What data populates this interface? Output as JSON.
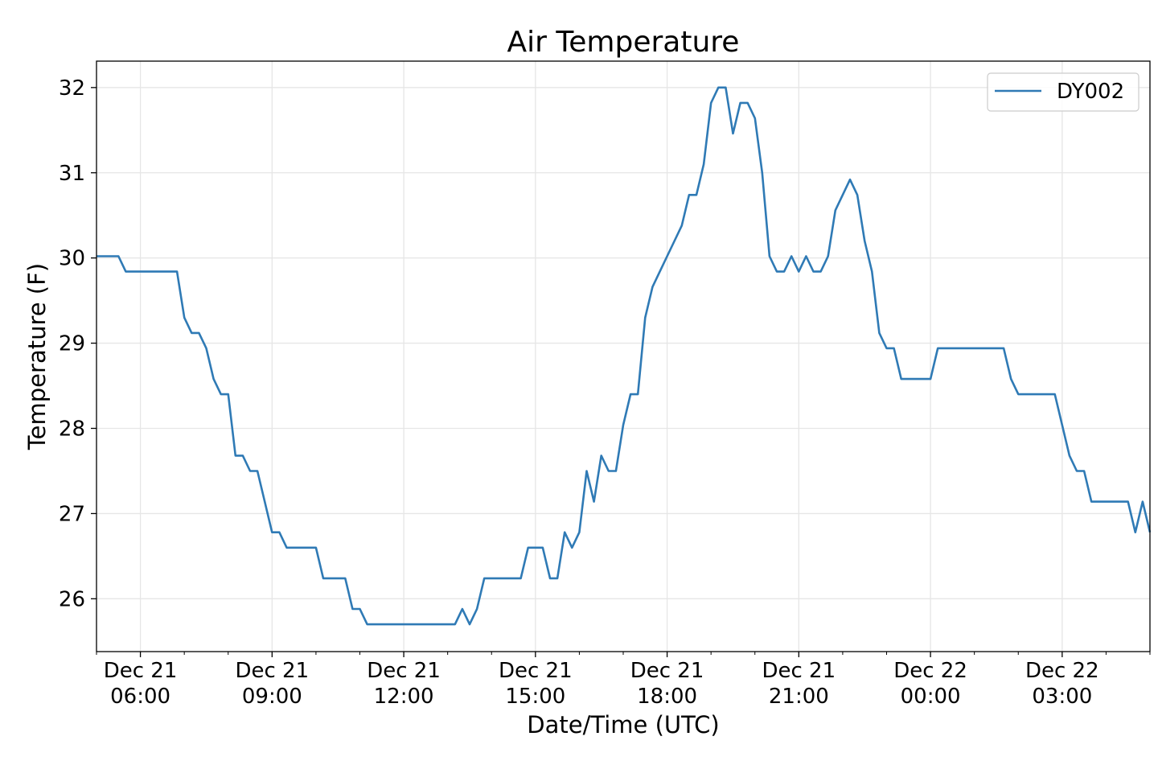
{
  "chart_data": {
    "type": "line",
    "title": "Air Temperature",
    "xlabel": "Date/Time (UTC)",
    "ylabel": "Temperature (F)",
    "x_units": "hours since Dec 21 00:00 UTC",
    "xlim": [
      5.0,
      29.0
    ],
    "ylim": [
      25.38,
      32.31
    ],
    "grid": true,
    "legend_position": "top-right",
    "yticks": [
      26,
      27,
      28,
      29,
      30,
      31,
      32
    ],
    "xticks": [
      {
        "value": 6,
        "line1": "Dec 21",
        "line2": "06:00"
      },
      {
        "value": 9,
        "line1": "Dec 21",
        "line2": "09:00"
      },
      {
        "value": 12,
        "line1": "Dec 21",
        "line2": "12:00"
      },
      {
        "value": 15,
        "line1": "Dec 21",
        "line2": "15:00"
      },
      {
        "value": 18,
        "line1": "Dec 21",
        "line2": "18:00"
      },
      {
        "value": 21,
        "line1": "Dec 21",
        "line2": "21:00"
      },
      {
        "value": 24,
        "line1": "Dec 22",
        "line2": "00:00"
      },
      {
        "value": 27,
        "line1": "Dec 22",
        "line2": "03:00"
      }
    ],
    "minor_xtick_step_hours": 1,
    "series": [
      {
        "name": "DY002",
        "color": "#2f7ab5",
        "x_start": 5.0,
        "x_step": 0.1666667,
        "values": [
          30.02,
          30.02,
          30.02,
          30.02,
          29.84,
          29.84,
          29.84,
          29.84,
          29.84,
          29.84,
          29.84,
          29.84,
          29.3,
          29.12,
          29.12,
          28.94,
          28.58,
          28.4,
          28.4,
          27.68,
          27.68,
          27.5,
          27.5,
          27.14,
          26.78,
          26.78,
          26.6,
          26.6,
          26.6,
          26.6,
          26.6,
          26.24,
          26.24,
          26.24,
          26.24,
          25.88,
          25.88,
          25.7,
          25.7,
          25.7,
          25.7,
          25.7,
          25.7,
          25.7,
          25.7,
          25.7,
          25.7,
          25.7,
          25.7,
          25.7,
          25.88,
          25.7,
          25.88,
          26.24,
          26.24,
          26.24,
          26.24,
          26.24,
          26.24,
          26.6,
          26.6,
          26.6,
          26.24,
          26.24,
          26.78,
          26.6,
          26.78,
          27.5,
          27.14,
          27.68,
          27.5,
          27.5,
          28.04,
          28.4,
          28.4,
          29.3,
          29.66,
          29.84,
          30.02,
          30.2,
          30.38,
          30.74,
          30.74,
          31.1,
          31.82,
          32.0,
          32.0,
          31.46,
          31.82,
          31.82,
          31.64,
          31.0,
          30.02,
          29.84,
          29.84,
          30.02,
          29.84,
          30.02,
          29.84,
          29.84,
          30.02,
          30.56,
          30.74,
          30.92,
          30.74,
          30.2,
          29.84,
          29.12,
          28.94,
          28.94,
          28.58,
          28.58,
          28.58,
          28.58,
          28.58,
          28.94,
          28.94,
          28.94,
          28.94,
          28.94,
          28.94,
          28.94,
          28.94,
          28.94,
          28.94,
          28.58,
          28.4,
          28.4,
          28.4,
          28.4,
          28.4,
          28.4,
          28.04,
          27.68,
          27.5,
          27.5,
          27.14,
          27.14,
          27.14,
          27.14,
          27.14,
          27.14,
          26.78,
          27.14,
          26.78
        ]
      }
    ]
  }
}
